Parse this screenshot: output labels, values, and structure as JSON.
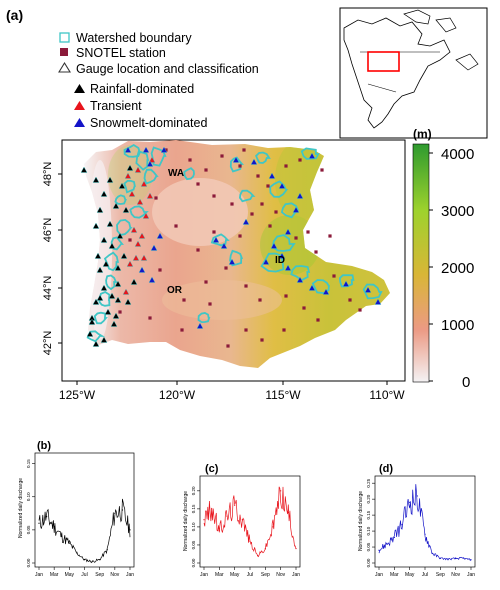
{
  "panel_labels": {
    "a": "(a)",
    "b": "(b)",
    "c": "(c)",
    "d": "(d)"
  },
  "legend": {
    "watershed": "Watershed boundary",
    "snotel": "SNOTEL station",
    "gauge": "Gauge location and classification",
    "rainfall": "Rainfall-dominated",
    "transient": "Transient",
    "snowmelt": "Snowmelt-dominated"
  },
  "colors": {
    "watershed": "#3fc6c6",
    "snotel": "#8b1a3a",
    "rainfall": "#000000",
    "transient": "#e8141c",
    "snowmelt": "#1414c8",
    "inset_box": "#ff0000"
  },
  "map": {
    "labels": {
      "wa": "WA",
      "or": "OR",
      "id": "ID"
    },
    "lon_ticks": [
      "125°W",
      "120°W",
      "115°W",
      "110°W"
    ],
    "lat_ticks": [
      "48°N",
      "46°N",
      "44°N",
      "42°N"
    ]
  },
  "colorbar": {
    "unit": "(m)",
    "ticks": [
      "4000",
      "3000",
      "2000",
      "1000",
      "0"
    ],
    "stops": [
      "#f4f2f4",
      "#ec9a84",
      "#d9b637",
      "#9ed22d",
      "#31a734"
    ]
  },
  "chart_data": [
    {
      "type": "line",
      "panel": "(b)",
      "ylabel": "Normalized daily discharge",
      "x_tick_labels": [
        "Jan",
        "Mar",
        "May",
        "Jul",
        "Sep",
        "Nov",
        "Jan"
      ],
      "y_tick_labels": [
        "0.00",
        "0.05",
        "0.10",
        "0.15"
      ],
      "ylim": [
        0,
        0.16
      ],
      "color": "#000000",
      "x": [
        "Jan",
        "Feb",
        "Mar",
        "Apr",
        "May",
        "Jun",
        "Jul",
        "Aug",
        "Sep",
        "Oct",
        "Nov",
        "Dec",
        "Jan"
      ],
      "y": [
        0.06,
        0.07,
        0.055,
        0.04,
        0.03,
        0.015,
        0.005,
        0.002,
        0.005,
        0.02,
        0.075,
        0.08,
        0.05
      ]
    },
    {
      "type": "line",
      "panel": "(c)",
      "ylabel": "Normalized daily discharge",
      "x_tick_labels": [
        "Jan",
        "Mar",
        "May",
        "Jul",
        "Sep",
        "Nov",
        "Jan"
      ],
      "y_tick_labels": [
        "0.00",
        "0.05",
        "0.10",
        "0.15",
        "0.20"
      ],
      "ylim": [
        0,
        0.23
      ],
      "color": "#e8141c",
      "x": [
        "Jan",
        "Feb",
        "Mar",
        "Apr",
        "May",
        "Jun",
        "Jul",
        "Aug",
        "Sep",
        "Oct",
        "Nov",
        "Dec",
        "Jan"
      ],
      "y": [
        0.12,
        0.15,
        0.09,
        0.13,
        0.16,
        0.12,
        0.06,
        0.02,
        0.04,
        0.1,
        0.2,
        0.14,
        0.04
      ]
    },
    {
      "type": "line",
      "panel": "(d)",
      "ylabel": "Normalized daily discharge",
      "x_tick_labels": [
        "Jan",
        "Mar",
        "May",
        "Jul",
        "Sep",
        "Nov",
        "Jan"
      ],
      "y_tick_labels": [
        "0.00",
        "0.05",
        "0.10",
        "0.15",
        "0.20",
        "0.25"
      ],
      "ylim": [
        0,
        0.26
      ],
      "color": "#1414c8",
      "x": [
        "Jan",
        "Feb",
        "Mar",
        "Apr",
        "May",
        "Jun",
        "Jul",
        "Aug",
        "Sep",
        "Oct",
        "Nov",
        "Dec",
        "Jan"
      ],
      "y": [
        0.04,
        0.06,
        0.08,
        0.12,
        0.19,
        0.21,
        0.09,
        0.03,
        0.015,
        0.012,
        0.014,
        0.015,
        0.01
      ]
    }
  ]
}
